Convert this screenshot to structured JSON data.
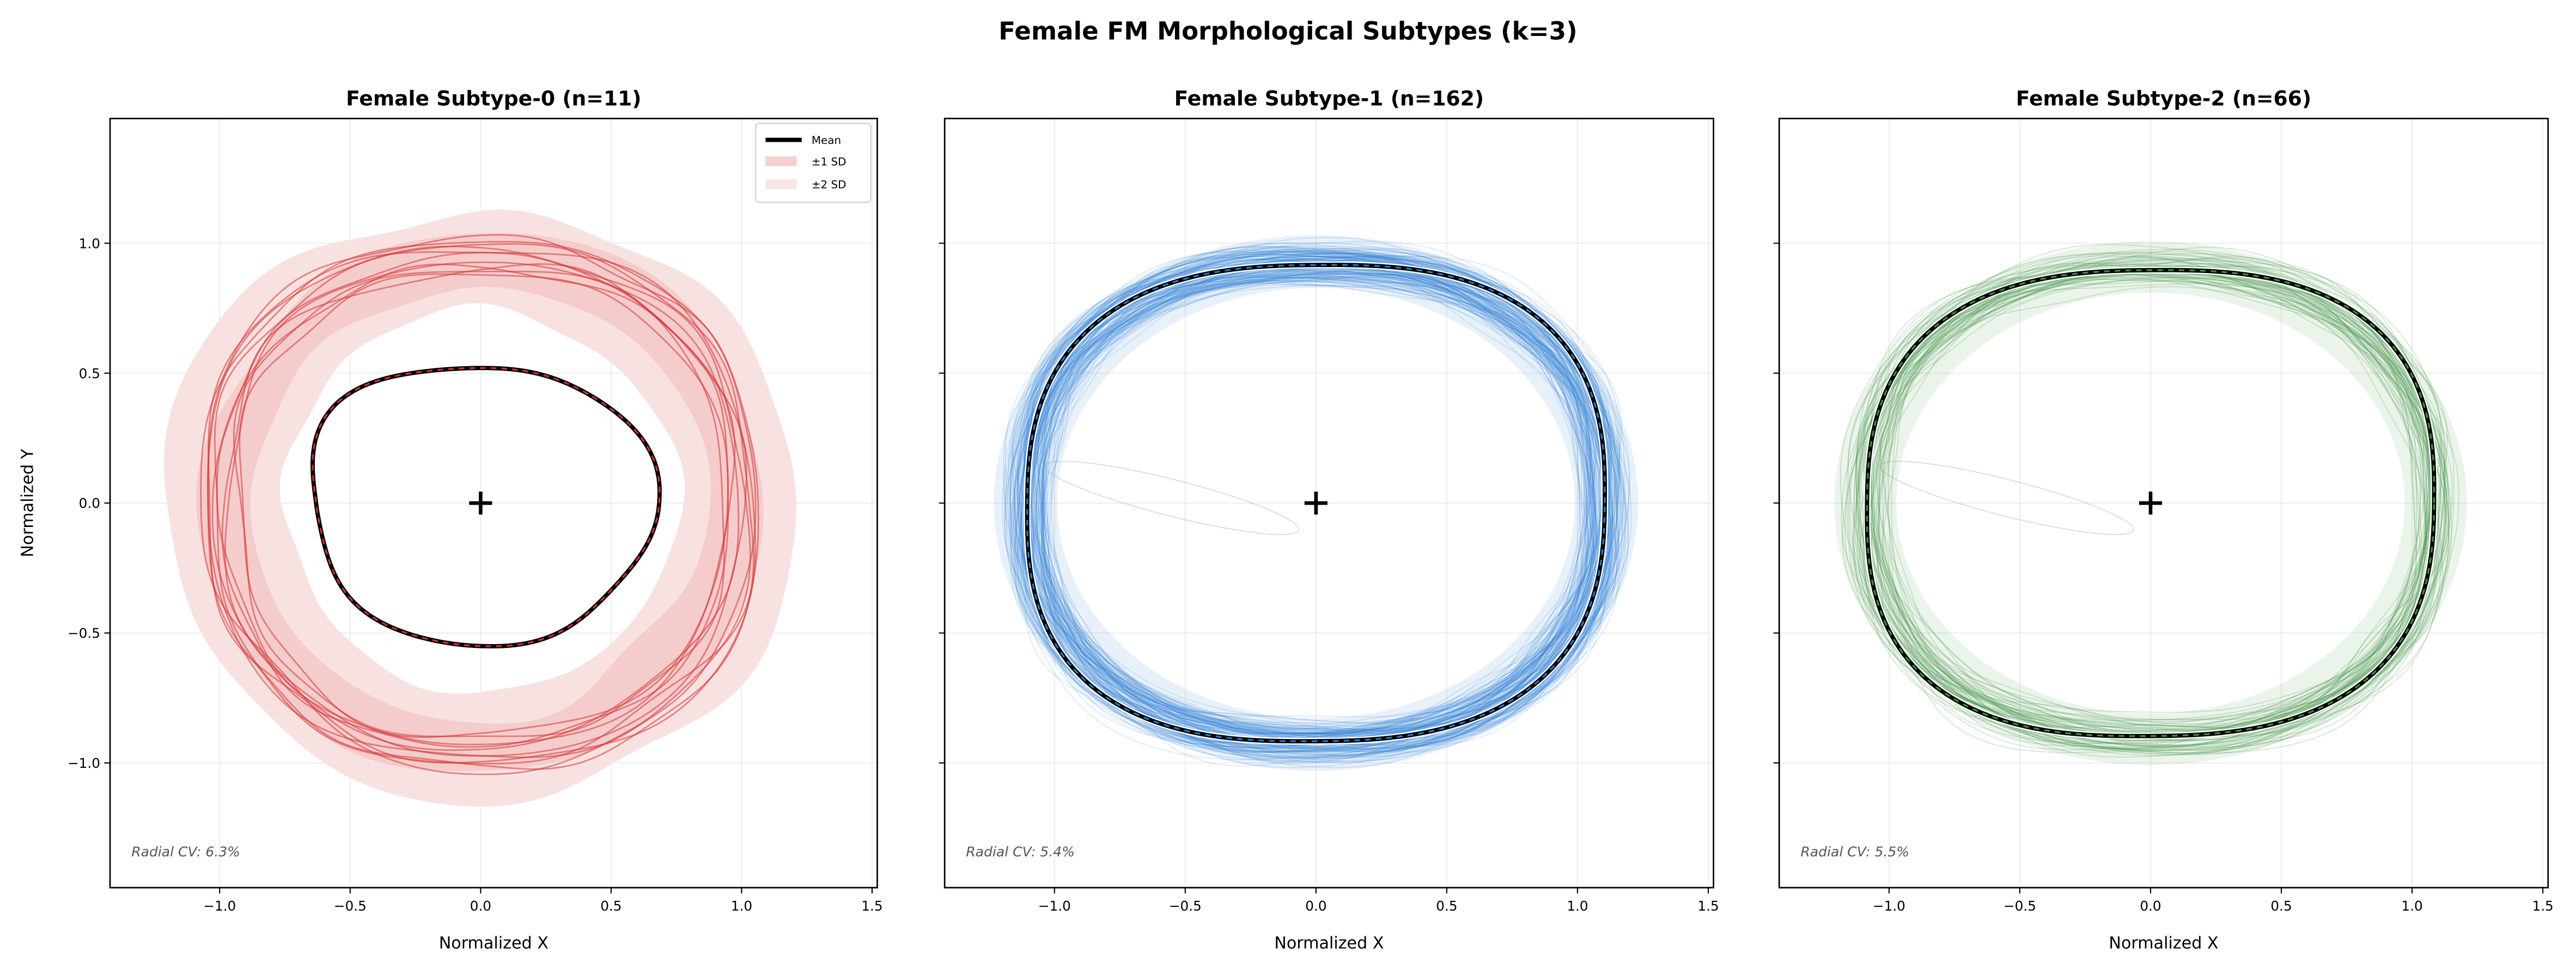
{
  "figure": {
    "title": "Female FM Morphological Subtypes (k=3)"
  },
  "legend": {
    "items": [
      "Mean",
      "±1 SD",
      "±2 SD"
    ],
    "placement": "upper-right (first panel)"
  },
  "chart_data": [
    {
      "type": "line",
      "title": "Female Subtype-0 (n=11)",
      "n": 11,
      "xlabel": "Normalized X",
      "ylabel": "Normalized Y",
      "xlim": [
        -1.42,
        1.52
      ],
      "ylim": [
        -1.48,
        1.48
      ],
      "xticks": [
        "−1.0",
        "−0.5",
        "0.0",
        "0.5",
        "1.0",
        "1.5"
      ],
      "yticks": [
        "−1.0",
        "−0.5",
        "0.0",
        "0.5",
        "1.0"
      ],
      "xtick_values": [
        -1.0,
        -0.5,
        0.0,
        0.5,
        1.0,
        1.5
      ],
      "ytick_values": [
        -1.0,
        -0.5,
        0.0,
        0.5,
        1.0
      ],
      "annotation": "Radial CV: 6.3%",
      "color": "#d32f2f",
      "mean_shape": {
        "rx": 0.64,
        "ry": 0.55,
        "center": [
          0.0,
          0.0
        ]
      },
      "individual_shape": {
        "rx": 1.0,
        "ry": 0.96,
        "spread": 0.07
      },
      "sd_bands": {
        "sd1": [
          0.86,
          1.1
        ],
        "sd2": [
          0.76,
          1.2
        ]
      },
      "grid": true
    },
    {
      "type": "line",
      "title": "Female Subtype-1 (n=162)",
      "n": 162,
      "xlabel": "Normalized X",
      "ylabel": "",
      "xlim": [
        -1.42,
        1.52
      ],
      "ylim": [
        -1.48,
        1.48
      ],
      "xticks": [
        "−1.0",
        "−0.5",
        "0.0",
        "0.5",
        "1.0",
        "1.5"
      ],
      "xtick_values": [
        -1.0,
        -0.5,
        0.0,
        0.5,
        1.0,
        1.5
      ],
      "ytick_values": [
        -1.0,
        -0.5,
        0.0,
        0.5,
        1.0
      ],
      "annotation": "Radial CV: 5.4%",
      "color": "#1e78d2",
      "mean_shape": {
        "rx": 1.1,
        "ry": 0.92,
        "center": [
          0.0,
          0.0
        ]
      },
      "individual_shape": {
        "rx": 1.1,
        "ry": 0.92,
        "spread": 0.06
      },
      "grid": true
    },
    {
      "type": "line",
      "title": "Female Subtype-2 (n=66)",
      "n": 66,
      "xlabel": "Normalized X",
      "ylabel": "",
      "xlim": [
        -1.42,
        1.52
      ],
      "ylim": [
        -1.48,
        1.48
      ],
      "xticks": [
        "−1.0",
        "−0.5",
        "0.0",
        "0.5",
        "1.0",
        "1.5"
      ],
      "xtick_values": [
        -1.0,
        -0.5,
        0.0,
        0.5,
        1.0,
        1.5
      ],
      "ytick_values": [
        -1.0,
        -0.5,
        0.0,
        0.5,
        1.0
      ],
      "annotation": "Radial CV: 5.5%",
      "color": "#3a8f3e",
      "mean_shape": {
        "rx": 1.08,
        "ry": 0.9,
        "center": [
          0.0,
          0.0
        ]
      },
      "individual_shape": {
        "rx": 1.08,
        "ry": 0.9,
        "spread": 0.065
      },
      "grid": true
    }
  ]
}
